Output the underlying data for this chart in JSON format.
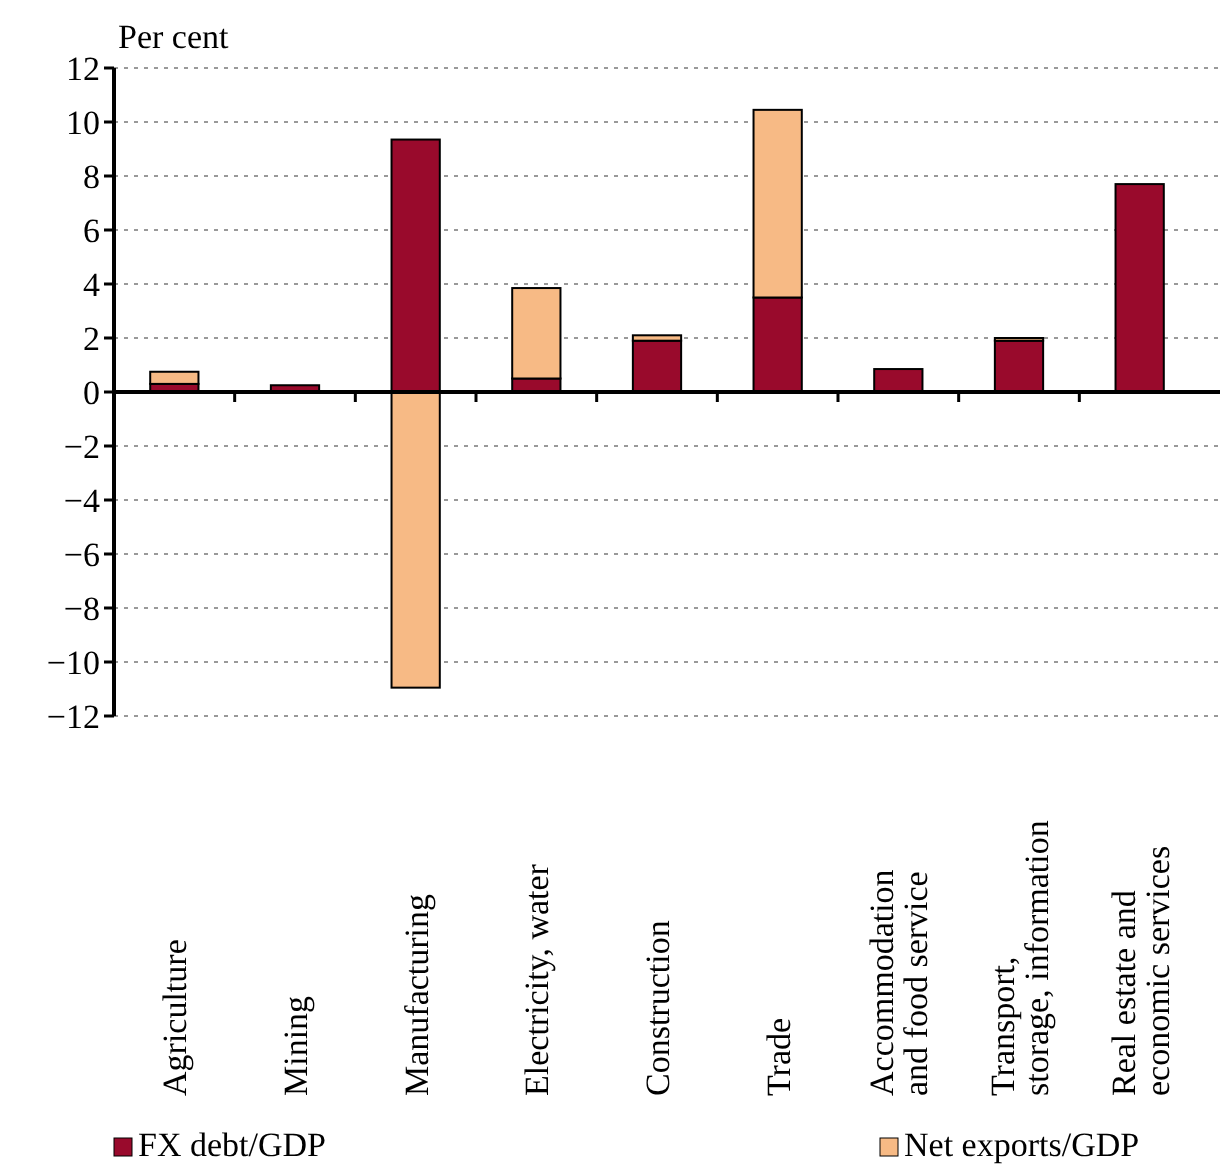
{
  "chart_data": {
    "type": "bar",
    "stacked": true,
    "ylabel": "Per cent",
    "categories": [
      "Agriculture",
      "Mining",
      "Manufacturing",
      "Electricity, water",
      "Construction",
      "Trade",
      "Accommodation\nand food service",
      "Transport,\nstorage, information",
      "Real estate and\neconomic services"
    ],
    "series": [
      {
        "name": "FX debt/GDP",
        "color": "#990a2c",
        "values": [
          0.3,
          0.25,
          9.35,
          0.5,
          1.9,
          3.5,
          0.85,
          1.9,
          7.7
        ]
      },
      {
        "name": "Net exports/GDP",
        "color": "#f7ba85",
        "values": [
          0.45,
          0,
          -10.95,
          3.35,
          0.2,
          6.95,
          0,
          0.1,
          0
        ]
      }
    ],
    "ylim": [
      -12,
      12
    ],
    "yticks": [
      {
        "value": -12,
        "label": "−12"
      },
      {
        "value": -10,
        "label": "−10"
      },
      {
        "value": -8,
        "label": "−8"
      },
      {
        "value": -6,
        "label": "−6"
      },
      {
        "value": -4,
        "label": "−4"
      },
      {
        "value": -2,
        "label": "−2"
      },
      0,
      2,
      4,
      6,
      8,
      10,
      12
    ],
    "grid": "y",
    "legend": "bottom"
  }
}
